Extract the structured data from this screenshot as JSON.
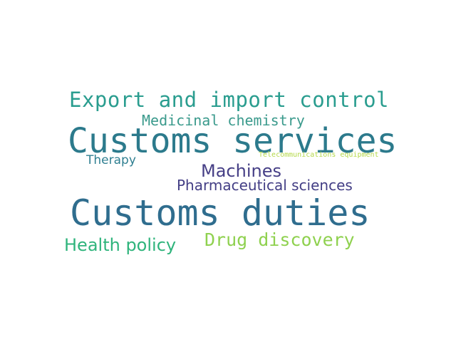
{
  "words": [
    {
      "text": "Export and import control",
      "color": "#2a9d8f"
    },
    {
      "text": "Medicinal chemistry",
      "color": "#3a9a8c"
    },
    {
      "text": "Customs services",
      "color": "#2c7a8c"
    },
    {
      "text": "Telecommunications equipment",
      "color": "#b5d94a"
    },
    {
      "text": "Therapy",
      "color": "#2f7f91"
    },
    {
      "text": "Machines",
      "color": "#463f86"
    },
    {
      "text": "Pharmaceutical sciences",
      "color": "#433e85"
    },
    {
      "text": "Customs duties",
      "color": "#2f6d8e"
    },
    {
      "text": "Drug discovery",
      "color": "#8fd14f"
    },
    {
      "text": "Health policy",
      "color": "#2fb47c"
    }
  ]
}
